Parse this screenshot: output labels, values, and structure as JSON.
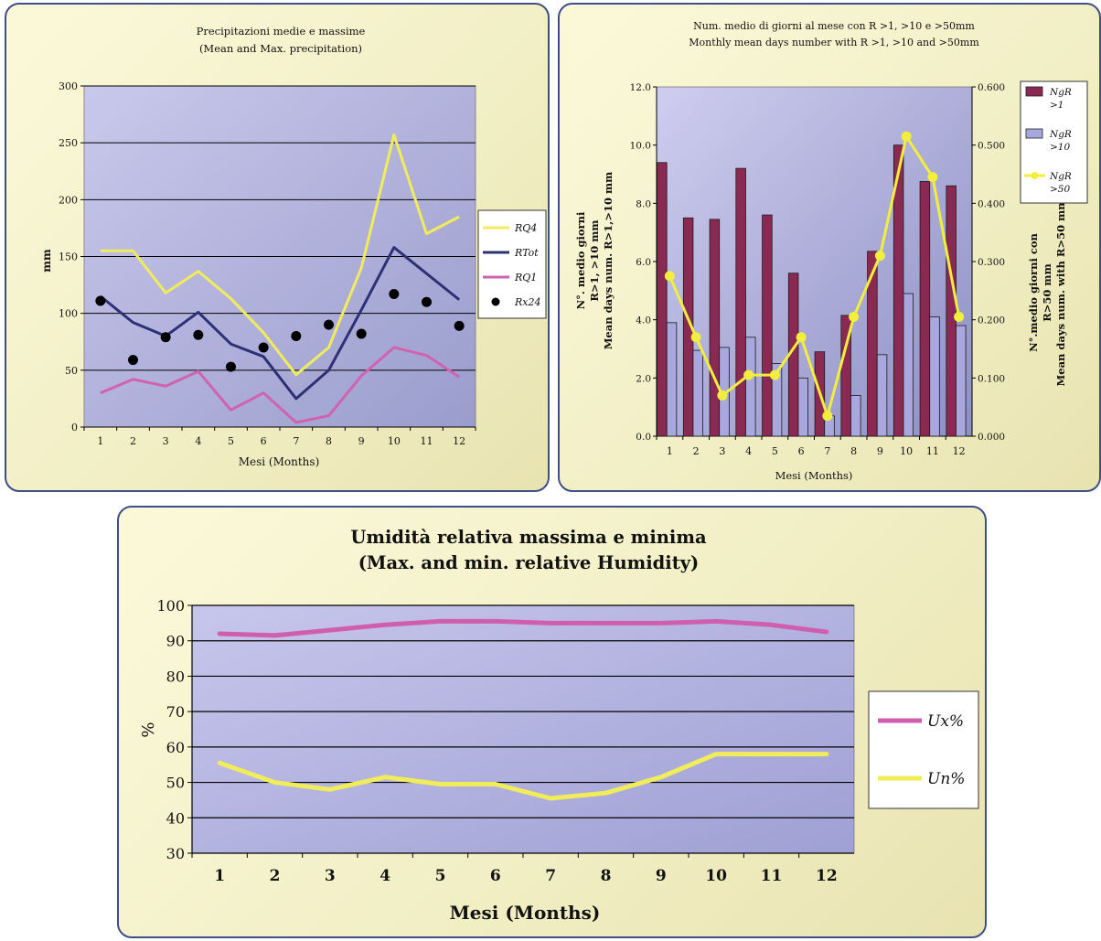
{
  "chart_data": [
    {
      "type": "line",
      "title": "Precipitazioni medie e massime",
      "subtitle": "(Mean and Max. precipitation)",
      "xlabel": "Mesi (Months)",
      "ylabel": "mm",
      "categories": [
        "1",
        "2",
        "3",
        "4",
        "5",
        "6",
        "7",
        "8",
        "9",
        "10",
        "11",
        "12"
      ],
      "ylim": [
        0,
        300
      ],
      "yticks": [
        "0",
        "50",
        "100",
        "150",
        "200",
        "250",
        "300"
      ],
      "grid": true,
      "legend_position": "right",
      "series": [
        {
          "name": "RQ4",
          "type": "line",
          "color": "#f0ec5a",
          "values": [
            155,
            155,
            118,
            137,
            113,
            83,
            46,
            70,
            140,
            257,
            170,
            185
          ]
        },
        {
          "name": "RTot",
          "type": "line",
          "color": "#2e3076",
          "values": [
            115,
            92,
            80,
            101,
            73,
            62,
            25,
            50,
            103,
            158,
            135,
            112
          ]
        },
        {
          "name": "RQ1",
          "type": "line",
          "color": "#d062b0",
          "values": [
            30,
            42,
            36,
            49,
            15,
            30,
            4,
            10,
            45,
            70,
            63,
            44
          ]
        },
        {
          "name": "Rx24",
          "type": "scatter",
          "color": "#000000",
          "values": [
            111,
            59,
            79,
            81,
            53,
            70,
            80,
            90,
            82,
            117,
            110,
            89
          ]
        }
      ]
    },
    {
      "type": "bar",
      "title": "Num. medio di giorni al mese con R >1, >10 e >50mm",
      "subtitle": "Monthly mean days number with R >1, >10 and >50mm",
      "xlabel": "Mesi (Months)",
      "ylabel_left_lines": [
        "N°. medio giorni",
        "R>1, >10 mm",
        "Mean days num. R>1,>10 mm"
      ],
      "ylabel_right_lines": [
        "N°.medio giorni con",
        "R>50 mm",
        "Mean days num. with R>50 mm"
      ],
      "categories": [
        "1",
        "2",
        "3",
        "4",
        "5",
        "6",
        "7",
        "8",
        "9",
        "10",
        "11",
        "12"
      ],
      "ylim_left": [
        0,
        12
      ],
      "yticks_left": [
        "0.0",
        "2.0",
        "4.0",
        "6.0",
        "8.0",
        "10.0",
        "12.0"
      ],
      "ylim_right": [
        0,
        0.6
      ],
      "yticks_right": [
        "0.000",
        "0.100",
        "0.200",
        "0.300",
        "0.400",
        "0.500",
        "0.600"
      ],
      "legend_position": "right",
      "series": [
        {
          "name": "NgR >1",
          "legend_lines": [
            "NgR",
            ">1"
          ],
          "type": "bar",
          "axis": "left",
          "color": "#8a2a52",
          "values": [
            9.4,
            7.5,
            7.45,
            9.2,
            7.6,
            5.6,
            2.9,
            4.15,
            6.35,
            10.0,
            8.75,
            8.6
          ]
        },
        {
          "name": "NgR >10",
          "legend_lines": [
            "NgR",
            ">10"
          ],
          "type": "bar",
          "axis": "left",
          "color": "#a8a8de",
          "values": [
            3.9,
            2.95,
            3.05,
            3.4,
            2.5,
            2.0,
            0.7,
            1.4,
            2.8,
            4.9,
            4.1,
            3.8
          ]
        },
        {
          "name": "NgR >50",
          "legend_lines": [
            "NgR",
            ">50"
          ],
          "type": "line",
          "axis": "right",
          "color": "#f2ee3e",
          "values": [
            0.275,
            0.17,
            0.07,
            0.105,
            0.105,
            0.17,
            0.035,
            0.205,
            0.31,
            0.515,
            0.445,
            0.205
          ]
        }
      ]
    },
    {
      "type": "line",
      "title": "Umidità relativa massima e minima",
      "subtitle": "(Max. and min. relative Humidity)",
      "xlabel": "Mesi (Months)",
      "ylabel": "%",
      "categories": [
        "1",
        "2",
        "3",
        "4",
        "5",
        "6",
        "7",
        "8",
        "9",
        "10",
        "11",
        "12"
      ],
      "ylim": [
        30,
        100
      ],
      "yticks": [
        "30",
        "40",
        "50",
        "60",
        "70",
        "80",
        "90",
        "100"
      ],
      "grid": true,
      "legend_position": "right",
      "series": [
        {
          "name": "Ux%",
          "type": "line",
          "color": "#cf5fae",
          "values": [
            92,
            91.5,
            93,
            94.5,
            95.5,
            95.5,
            95,
            95,
            95,
            95.5,
            94.5,
            92.5
          ]
        },
        {
          "name": "Un%",
          "type": "line",
          "color": "#f0ec5a",
          "values": [
            55.5,
            50,
            48,
            51.5,
            49.5,
            49.5,
            45.5,
            47,
            51.5,
            58,
            58,
            58
          ]
        }
      ]
    }
  ]
}
